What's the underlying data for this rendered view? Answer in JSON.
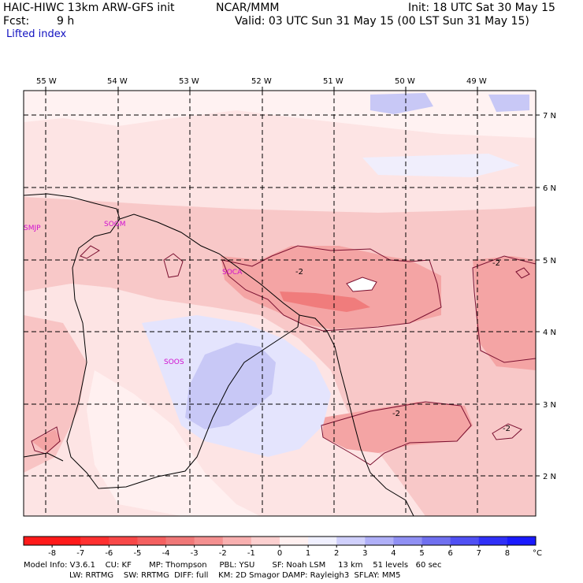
{
  "header": {
    "model": "HAIC-HIWC 13km ARW-GFS init",
    "org": "NCAR/MMM",
    "init": "Init: 18 UTC Sat 30 May 15",
    "fcst_label": "Fcst:",
    "fcst_value": "9 h",
    "valid": "Valid: 03 UTC Sun 31 May 15 (00 LST Sun 31 May 15)",
    "field": "Lifted index"
  },
  "map": {
    "lon_labels": [
      "55 W",
      "54 W",
      "53 W",
      "52 W",
      "51 W",
      "50 W",
      "49 W"
    ],
    "lat_labels": [
      "7 N",
      "6 N",
      "5 N",
      "4 N",
      "3 N",
      "2 N"
    ],
    "stations": [
      "SMJP",
      "SOGM",
      "SOCA",
      "SOOS"
    ],
    "contour_labels": [
      "-2",
      "-2",
      "-2",
      "-2"
    ],
    "colors": {
      "neg4": "#f08080",
      "neg3": "#f4a0a0",
      "neg2": "#f8c0c0",
      "neg1": "#fde4e4",
      "zero": "#ffffff",
      "pos1": "#e4e4fd",
      "pos2": "#c8c8f8",
      "coast": "#000000",
      "station": "#d010d0"
    }
  },
  "colorbar": {
    "ticks": [
      "-8",
      "-7",
      "-6",
      "-5",
      "-4",
      "-3",
      "-2",
      "-1",
      "0",
      "1",
      "2",
      "3",
      "4",
      "5",
      "6",
      "7",
      "8"
    ],
    "unit": "°C",
    "colors": [
      "#ff1a1a",
      "#ff3030",
      "#f84848",
      "#f46060",
      "#f07878",
      "#f49090",
      "#f8b0b0",
      "#fcd0d0",
      "#fff0f0",
      "#f0f0ff",
      "#d0d0fc",
      "#b0b0f8",
      "#9090f4",
      "#7070f0",
      "#5050f4",
      "#3030f8",
      "#1a1aff"
    ]
  },
  "footer": {
    "line1": "Model Info: V3.6.1    CU: KF       MP: Thompson     PBL: YSU       SF: Noah LSM     13 km    51 levels   60 sec",
    "line2": "LW: RRTMG    SW: RRTMG  DIFF: full    KM: 2D Smagor DAMP: Rayleigh3  SFLAY: MM5"
  }
}
